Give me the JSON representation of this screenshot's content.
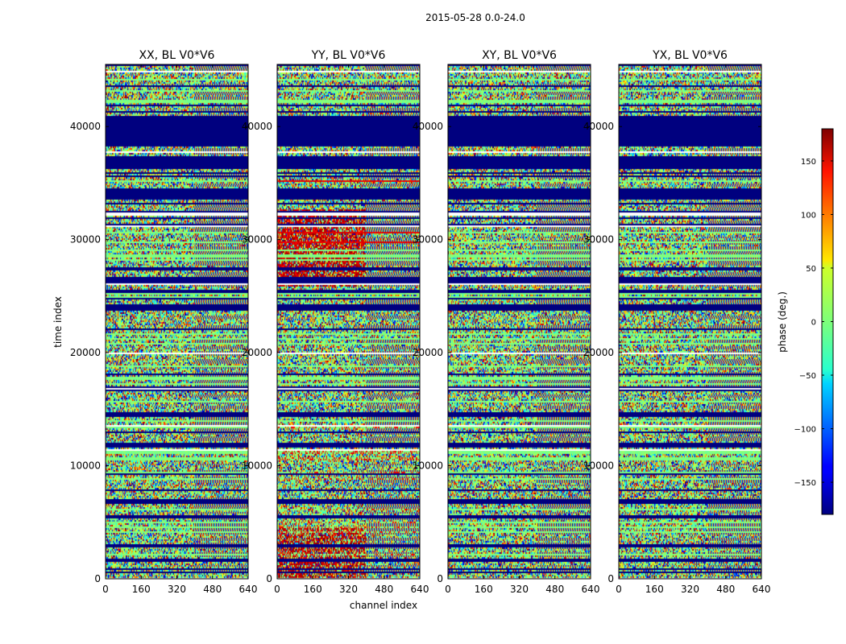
{
  "chart_data": {
    "type": "heatmap",
    "title": "2015-05-28 0.0-24.0",
    "xlabel": "channel index",
    "ylabel": "time index",
    "xlim": [
      0,
      640
    ],
    "ylim": [
      0,
      45500
    ],
    "x_ticks": [
      0,
      160,
      320,
      480,
      640
    ],
    "y_ticks": [
      0,
      10000,
      20000,
      30000,
      40000
    ],
    "panels": [
      {
        "name": "XX",
        "title": "XX, BL V0*V6"
      },
      {
        "name": "YY",
        "title": "YY, BL V0*V6"
      },
      {
        "name": "XY",
        "title": "XY, BL V0*V6"
      },
      {
        "name": "YX",
        "title": "YX, BL V0*V6"
      }
    ],
    "colorbar": {
      "label": "phase (deg.)",
      "range": [
        -180,
        180
      ],
      "ticks": [
        150,
        100,
        50,
        0,
        -50,
        -100,
        -150
      ],
      "tick_labels": [
        "150",
        "100",
        "50",
        "0",
        "−50",
        "−100",
        "−150"
      ],
      "colormap": "jet"
    },
    "flagged_time_bands": [
      [
        36200,
        37400
      ],
      [
        33600,
        34600
      ],
      [
        38400,
        41000
      ],
      [
        26100,
        26800
      ],
      [
        23800,
        24300
      ],
      [
        14400,
        14800
      ],
      [
        11700,
        12100
      ],
      [
        6700,
        7100
      ],
      [
        5400,
        5700
      ],
      [
        2800,
        3100
      ]
    ],
    "colors": {
      "flagged": "#00007f",
      "zero_phase": "#7fff7f"
    }
  }
}
